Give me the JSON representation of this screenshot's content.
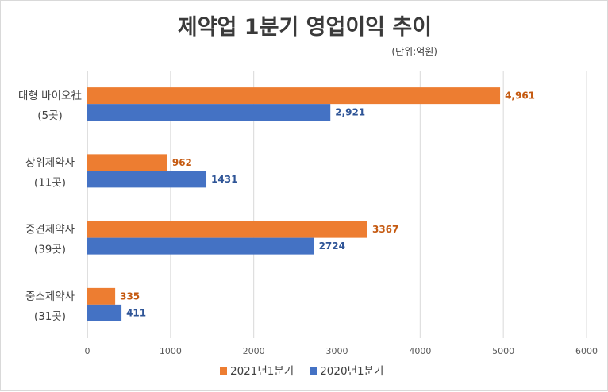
{
  "chart_data": {
    "type": "bar",
    "orientation": "horizontal",
    "title": "제약업 1분기 영업이익 추이",
    "unit_note": "(단위:억원)",
    "categories": [
      {
        "line1": "대형 바이오社",
        "line2": "(5곳)"
      },
      {
        "line1": "상위제약사",
        "line2": "(11곳)"
      },
      {
        "line1": "중견제약사",
        "line2": "(39곳)"
      },
      {
        "line1": "중소제약사",
        "line2": "(31곳)"
      }
    ],
    "series": [
      {
        "name": "2021년1분기",
        "color": "#ED7D31",
        "label_color": "#C55A11",
        "values": [
          4961,
          962,
          3367,
          335
        ],
        "labels": [
          "4,961",
          "962",
          "3367",
          "335"
        ]
      },
      {
        "name": "2020년1분기",
        "color": "#4472C4",
        "label_color": "#2F5597",
        "values": [
          2921,
          1431,
          2724,
          411
        ],
        "labels": [
          "2,921",
          "1431",
          "2724",
          "411"
        ]
      }
    ],
    "xlim": [
      0,
      6000
    ],
    "x_ticks": [
      0,
      1000,
      2000,
      3000,
      4000,
      5000,
      6000
    ],
    "grid": true,
    "legend_position": "bottom"
  }
}
